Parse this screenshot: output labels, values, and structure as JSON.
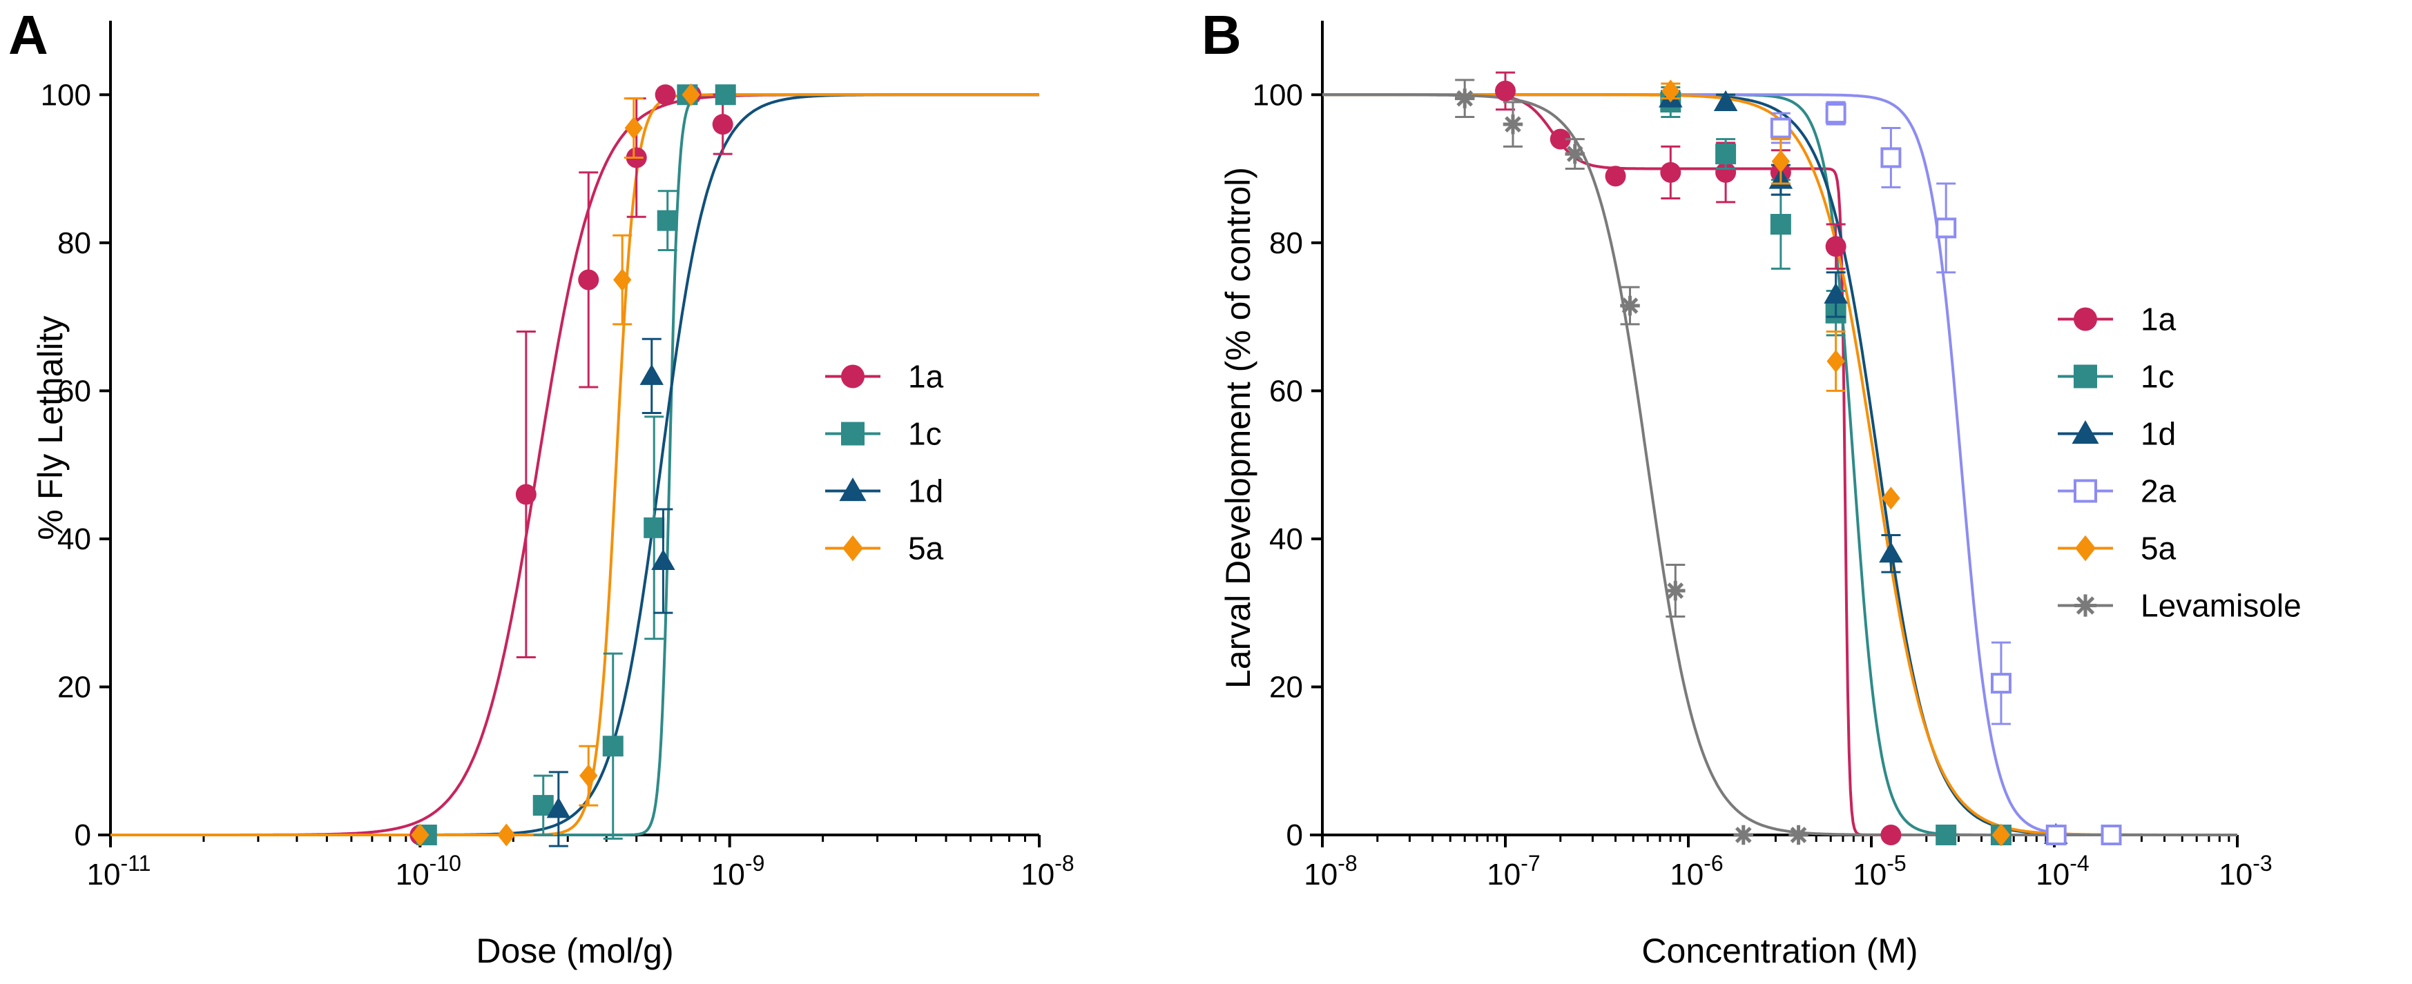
{
  "chart_data": [
    {
      "panel": "A",
      "type": "scatter",
      "x_scale": "log",
      "xlabel": "Dose (mol/g)",
      "ylabel": "% Fly Lethality",
      "xlim": [
        1e-11,
        1e-08
      ],
      "ylim": [
        0,
        110
      ],
      "x_ticks": [
        {
          "value": 1e-11,
          "base": "10",
          "exp": "-11"
        },
        {
          "value": 1e-10,
          "base": "10",
          "exp": "-10"
        },
        {
          "value": 1e-09,
          "base": "10",
          "exp": "-9"
        },
        {
          "value": 1e-08,
          "base": "10",
          "exp": "-8"
        }
      ],
      "y_ticks": [
        "0",
        "20",
        "40",
        "60",
        "80",
        "100"
      ],
      "legend": {
        "placement": "right-middle"
      },
      "series": [
        {
          "name": "1a",
          "color": "#c8245c",
          "marker": "circle",
          "curve": {
            "ec50": 2.4e-10,
            "hill": 4.5
          },
          "points": [
            {
              "x": 1e-10,
              "y": 0,
              "err": 0
            },
            {
              "x": 2.2e-10,
              "y": 46,
              "err": 22
            },
            {
              "x": 3.5e-10,
              "y": 75,
              "err": 14.5
            },
            {
              "x": 5e-10,
              "y": 91.5,
              "err": 8
            },
            {
              "x": 6.2e-10,
              "y": 100,
              "err": 0
            },
            {
              "x": 7.5e-10,
              "y": 100,
              "err": 0
            },
            {
              "x": 9.5e-10,
              "y": 96,
              "err": 4
            }
          ]
        },
        {
          "name": "1c",
          "color": "#2e8b88",
          "marker": "square",
          "curve": {
            "ec50": 6.4e-10,
            "hill": 30
          },
          "points": [
            {
              "x": 1.05e-10,
              "y": 0,
              "err": 0
            },
            {
              "x": 2.5e-10,
              "y": 4,
              "err": 4
            },
            {
              "x": 4.2e-10,
              "y": 12,
              "err": 12.5
            },
            {
              "x": 5.7e-10,
              "y": 41.5,
              "err": 15
            },
            {
              "x": 6.3e-10,
              "y": 83,
              "err": 4
            },
            {
              "x": 7.3e-10,
              "y": 100,
              "err": 0
            },
            {
              "x": 9.7e-10,
              "y": 100,
              "err": 0
            }
          ]
        },
        {
          "name": "1d",
          "color": "#10507a",
          "marker": "triangle",
          "curve": {
            "ec50": 6e-10,
            "hill": 5.5
          },
          "points": [
            {
              "x": 2.8e-10,
              "y": 3.5,
              "err": 5
            },
            {
              "x": 5.6e-10,
              "y": 62,
              "err": 5
            },
            {
              "x": 6.1e-10,
              "y": 37,
              "err": 7
            }
          ]
        },
        {
          "name": "5a",
          "color": "#f5900a",
          "marker": "diamond",
          "curve": {
            "ec50": 4.3e-10,
            "hill": 14
          },
          "points": [
            {
              "x": 1e-10,
              "y": 0,
              "err": 0
            },
            {
              "x": 1.9e-10,
              "y": 0,
              "err": 0
            },
            {
              "x": 3.5e-10,
              "y": 8,
              "err": 4
            },
            {
              "x": 4.5e-10,
              "y": 75,
              "err": 6
            },
            {
              "x": 4.9e-10,
              "y": 95.5,
              "err": 4
            },
            {
              "x": 7.5e-10,
              "y": 100,
              "err": 0
            }
          ]
        }
      ]
    },
    {
      "panel": "B",
      "type": "scatter",
      "x_scale": "log",
      "xlabel": "Concentration (M)",
      "ylabel": "Larval Development (% of control)",
      "xlim": [
        1e-08,
        0.001
      ],
      "ylim": [
        0,
        110
      ],
      "x_ticks": [
        {
          "value": 1e-08,
          "base": "10",
          "exp": "-8"
        },
        {
          "value": 1e-07,
          "base": "10",
          "exp": "-7"
        },
        {
          "value": 1e-06,
          "base": "10",
          "exp": "-6"
        },
        {
          "value": 1e-05,
          "base": "10",
          "exp": "-5"
        },
        {
          "value": 0.0001,
          "base": "10",
          "exp": "-4"
        },
        {
          "value": 0.001,
          "base": "10",
          "exp": "-3"
        }
      ],
      "y_ticks": [
        "0",
        "20",
        "40",
        "60",
        "80",
        "100"
      ],
      "legend": {
        "placement": "right-middle"
      },
      "series": [
        {
          "name": "1a",
          "color": "#c8245c",
          "marker": "circle",
          "curve": {
            "components": [
              {
                "w": 10,
                "ec50": 1.8e-07,
                "hill": 6
              },
              {
                "w": 90,
                "ec50": 7.2e-06,
                "hill": 40
              }
            ]
          },
          "points": [
            {
              "x": 1e-07,
              "y": 100.5,
              "err": 2.5
            },
            {
              "x": 2e-07,
              "y": 94,
              "err": 0
            },
            {
              "x": 4e-07,
              "y": 89,
              "err": 0
            },
            {
              "x": 8e-07,
              "y": 89.5,
              "err": 3.5
            },
            {
              "x": 1.6e-06,
              "y": 89.5,
              "err": 4
            },
            {
              "x": 3.2e-06,
              "y": 89.5,
              "err": 3
            },
            {
              "x": 6.4e-06,
              "y": 79.5,
              "err": 3
            },
            {
              "x": 1.28e-05,
              "y": 0,
              "err": 0
            },
            {
              "x": 2.56e-05,
              "y": 0,
              "err": 0
            }
          ]
        },
        {
          "name": "1c",
          "color": "#2e8b88",
          "marker": "square",
          "curve": {
            "ec50": 8e-06,
            "hill": 6
          },
          "points": [
            {
              "x": 8e-07,
              "y": 99,
              "err": 2
            },
            {
              "x": 1.6e-06,
              "y": 92,
              "err": 2
            },
            {
              "x": 3.2e-06,
              "y": 82.5,
              "err": 6
            },
            {
              "x": 6.4e-06,
              "y": 70.5,
              "err": 3
            },
            {
              "x": 2.56e-05,
              "y": 0,
              "err": 0
            },
            {
              "x": 5.12e-05,
              "y": 0,
              "err": 0
            }
          ]
        },
        {
          "name": "1d",
          "color": "#10507a",
          "marker": "triangle",
          "curve": {
            "ec50": 1.1e-05,
            "hill": 3
          },
          "points": [
            {
              "x": 8e-07,
              "y": 99.5,
              "err": 1
            },
            {
              "x": 1.6e-06,
              "y": 99,
              "err": 1
            },
            {
              "x": 3.2e-06,
              "y": 88.5,
              "err": 2
            },
            {
              "x": 6.4e-06,
              "y": 73,
              "err": 3
            },
            {
              "x": 1.28e-05,
              "y": 38,
              "err": 2.5
            },
            {
              "x": 0.000102,
              "y": 0,
              "err": 0
            }
          ]
        },
        {
          "name": "2a",
          "color": "#8c8cf2",
          "marker": "open-square",
          "curve": {
            "ec50": 3.1e-05,
            "hill": 5
          },
          "points": [
            {
              "x": 3.2e-06,
              "y": 95.5,
              "err": 2
            },
            {
              "x": 6.4e-06,
              "y": 97.5,
              "err": 1.5
            },
            {
              "x": 1.28e-05,
              "y": 91.5,
              "err": 4
            },
            {
              "x": 2.56e-05,
              "y": 82,
              "err": 6
            },
            {
              "x": 5.12e-05,
              "y": 20.5,
              "err": 5.5
            },
            {
              "x": 0.0001024,
              "y": 0,
              "err": 0
            },
            {
              "x": 0.0002048,
              "y": 0,
              "err": 0
            }
          ]
        },
        {
          "name": "5a",
          "color": "#f5900a",
          "marker": "diamond",
          "curve": {
            "ec50": 1.05e-05,
            "hill": 2.8
          },
          "points": [
            {
              "x": 8e-07,
              "y": 100.5,
              "err": 1
            },
            {
              "x": 3.2e-06,
              "y": 91,
              "err": 3
            },
            {
              "x": 6.4e-06,
              "y": 64,
              "err": 4
            },
            {
              "x": 1.28e-05,
              "y": 45.5,
              "err": 0
            },
            {
              "x": 5.12e-05,
              "y": 0,
              "err": 0
            }
          ]
        },
        {
          "name": "Levamisole",
          "color": "#7a7a7a",
          "marker": "star",
          "curve": {
            "ec50": 6e-07,
            "hill": 3
          },
          "points": [
            {
              "x": 6e-08,
              "y": 99.5,
              "err": 2.5
            },
            {
              "x": 1.1e-07,
              "y": 96,
              "err": 3
            },
            {
              "x": 2.4e-07,
              "y": 92,
              "err": 2
            },
            {
              "x": 4.8e-07,
              "y": 71.5,
              "err": 2.5
            },
            {
              "x": 8.5e-07,
              "y": 33,
              "err": 3.5
            },
            {
              "x": 2e-06,
              "y": 0,
              "err": 0
            },
            {
              "x": 4e-06,
              "y": 0,
              "err": 0
            }
          ]
        }
      ]
    }
  ]
}
